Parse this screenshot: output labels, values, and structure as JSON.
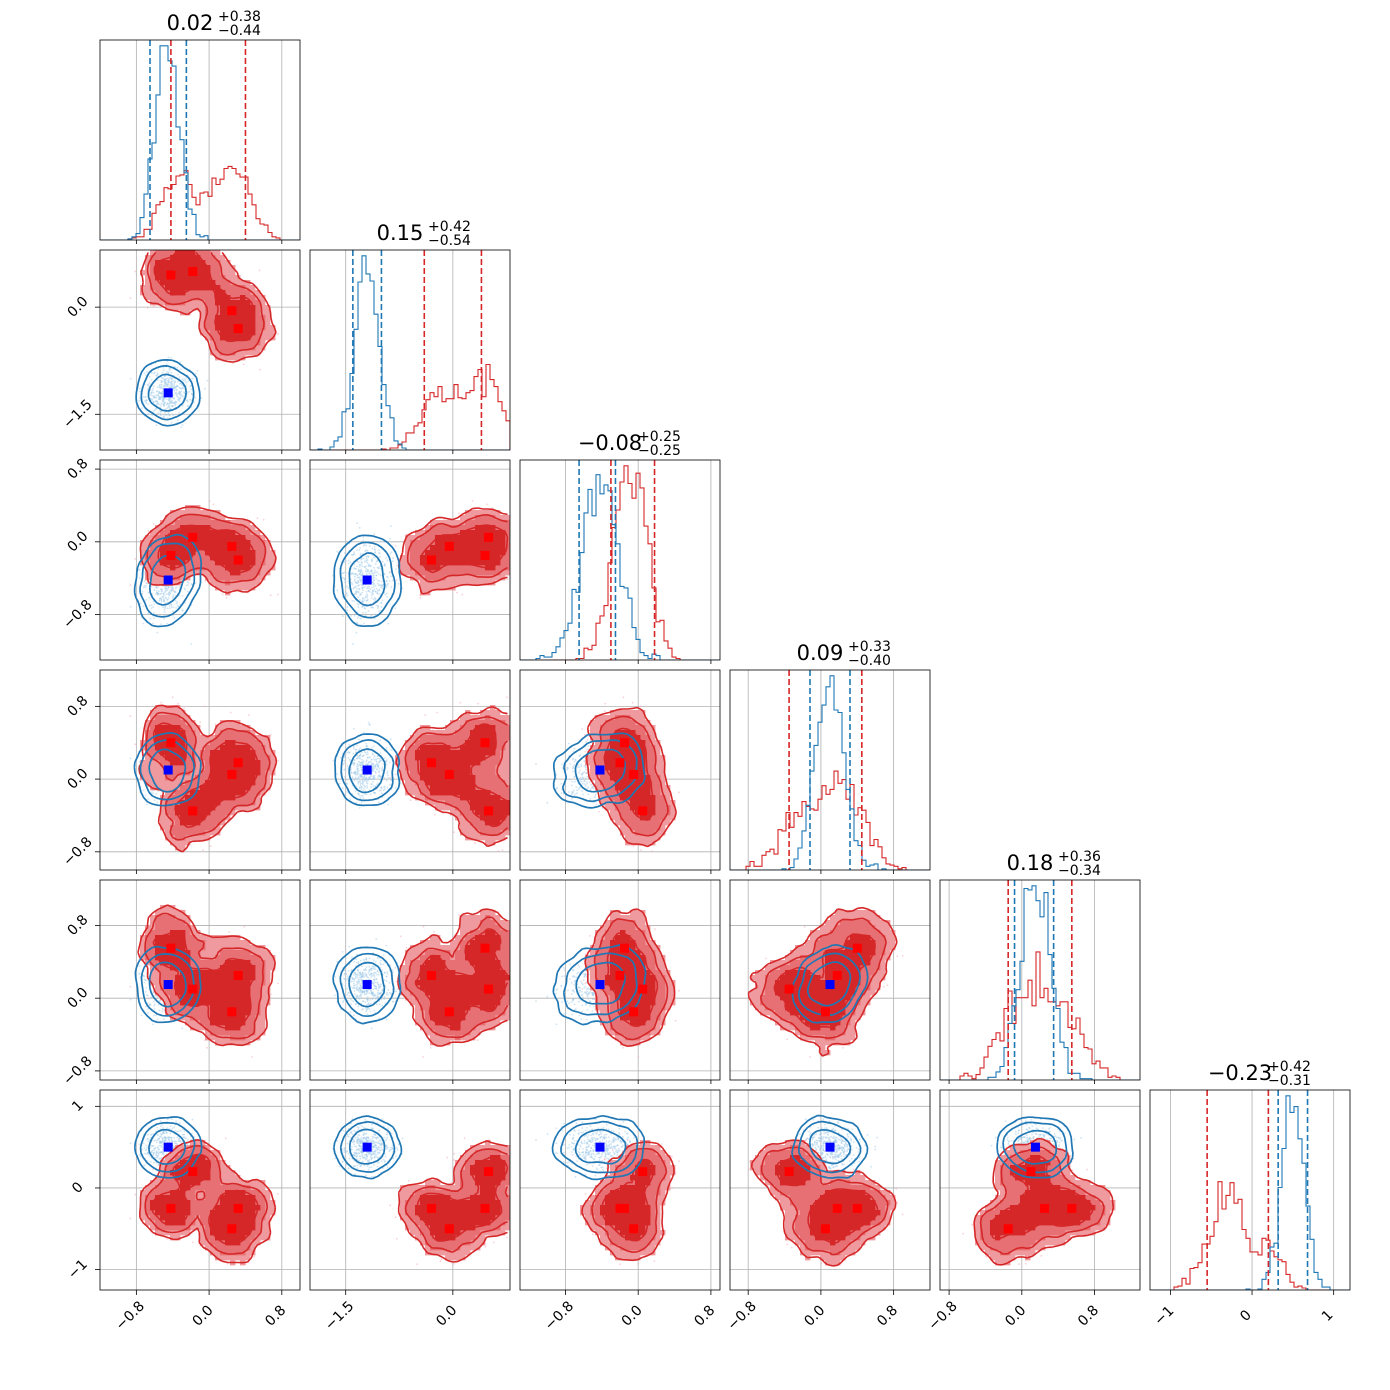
{
  "chart_data": {
    "type": "corner",
    "n_params": 6,
    "colors": {
      "posterior_a": "#1f77b4",
      "posterior_b": "#d62728",
      "truth_a": "#0000ff",
      "truth_b": "#ff0000",
      "grid": "#b0b0b0"
    },
    "grid": true,
    "titles": [
      {
        "value": "0.02",
        "plus": "+0.38",
        "minus": "−0.44"
      },
      {
        "value": "0.15",
        "plus": "+0.42",
        "minus": "−0.54"
      },
      {
        "value": "−0.08",
        "plus": "+0.25",
        "minus": "−0.25"
      },
      {
        "value": "0.09",
        "plus": "+0.33",
        "minus": "−0.40"
      },
      {
        "value": "0.18",
        "plus": "+0.36",
        "minus": "−0.34"
      },
      {
        "value": "−0.23",
        "plus": "+0.42",
        "minus": "−0.31"
      }
    ],
    "ranges": [
      [
        -1.2,
        1.0
      ],
      [
        -2.0,
        0.8
      ],
      [
        -1.3,
        0.9
      ],
      [
        -1.0,
        1.2
      ],
      [
        -0.9,
        1.3
      ],
      [
        -1.25,
        1.2
      ]
    ],
    "ticks": [
      {
        "values": [
          -0.8,
          0.0,
          0.8
        ],
        "labels": [
          "−0.8",
          "0.0",
          "0.8"
        ]
      },
      {
        "values": [
          -1.5,
          0.0
        ],
        "labels": [
          "−1.5",
          "0.0"
        ]
      },
      {
        "values": [
          -0.8,
          0.0,
          0.8
        ],
        "labels": [
          "−0.8",
          "0.0",
          "0.8"
        ]
      },
      {
        "values": [
          -0.8,
          0.0,
          0.8
        ],
        "labels": [
          "−0.8",
          "0.0",
          "0.8"
        ]
      },
      {
        "values": [
          -0.8,
          0.0,
          0.8
        ],
        "labels": [
          "−0.8",
          "0.0",
          "0.8"
        ]
      },
      {
        "values": [
          -1,
          0,
          1
        ],
        "labels": [
          "−1",
          "0",
          "1"
        ]
      }
    ],
    "blue": {
      "means": [
        -0.45,
        -1.2,
        -0.42,
        0.1,
        0.15,
        0.5
      ],
      "sds": [
        0.13,
        0.17,
        0.2,
        0.16,
        0.16,
        0.14
      ],
      "quantile_lines": [
        [
          -0.65,
          -0.25
        ],
        [
          -1.4,
          -1.0
        ],
        [
          -0.65,
          -0.25
        ],
        [
          -0.12,
          0.32
        ],
        [
          -0.08,
          0.35
        ],
        [
          0.32,
          0.68
        ]
      ],
      "corr": [
        [
          1,
          0,
          0.2,
          0,
          0,
          0
        ],
        [
          0,
          1,
          0,
          0,
          0,
          0
        ],
        [
          0.2,
          0,
          1,
          0.25,
          0.2,
          0
        ],
        [
          0,
          0,
          0.25,
          1,
          0.2,
          -0.1
        ],
        [
          0,
          0,
          0.2,
          0.2,
          1,
          0
        ],
        [
          0,
          0,
          0,
          -0.1,
          0,
          1
        ]
      ]
    },
    "red": {
      "modes": [
        [
          -0.42,
          0.45,
          -0.15,
          0.4,
          0.55,
          -0.25
        ],
        [
          -0.18,
          0.5,
          0.05,
          -0.35,
          0.1,
          0.2
        ],
        [
          0.25,
          -0.05,
          -0.05,
          0.05,
          -0.15,
          -0.5
        ],
        [
          0.32,
          -0.3,
          -0.2,
          0.18,
          0.25,
          -0.25
        ]
      ],
      "x_of_param_2": [
        -0.4,
        0.3,
        -0.05,
        0.3
      ],
      "spread": [
        0.16,
        0.22,
        0.14,
        0.18,
        0.18,
        0.16
      ],
      "quantile_lines": [
        [
          -0.42,
          0.4
        ],
        [
          -0.4,
          0.4
        ],
        [
          -0.3,
          0.18
        ],
        [
          -0.35,
          0.45
        ],
        [
          -0.15,
          0.55
        ],
        [
          -0.55,
          0.2
        ]
      ],
      "truth_points": [
        [
          -0.42,
          0.45,
          -0.15,
          0.4,
          0.55,
          -0.25
        ],
        [
          -0.18,
          0.5,
          0.05,
          -0.35,
          0.1,
          0.2
        ],
        [
          0.25,
          -0.05,
          -0.05,
          0.05,
          -0.15,
          -0.5
        ],
        [
          0.32,
          -0.3,
          -0.2,
          0.18,
          0.25,
          -0.25
        ]
      ]
    },
    "blue_truth": [
      -0.45,
      -1.2,
      -0.42,
      0.1,
      0.15,
      0.5
    ]
  }
}
